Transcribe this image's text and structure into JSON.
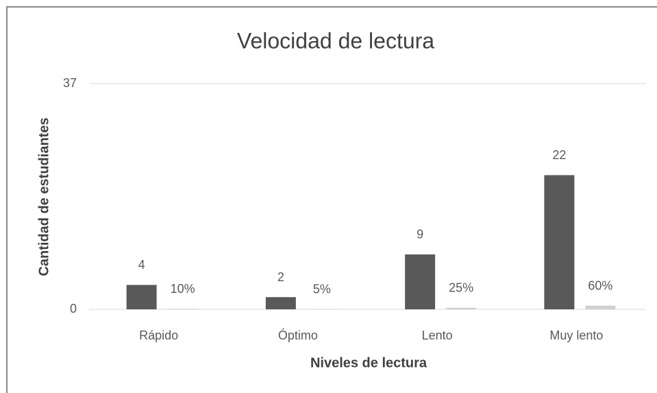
{
  "chart_data": {
    "type": "bar",
    "title": "Velocidad de lectura",
    "x_label": "Niveles de lectura",
    "y_label": "Cantidad de estudiantes",
    "categories": [
      "Rápido",
      "Óptimo",
      "Lento",
      "Muy lento"
    ],
    "series": [
      {
        "color": "#595959",
        "values": [
          4,
          2,
          9,
          22
        ]
      },
      {
        "color": "#d0d0d0",
        "values": [
          0.1,
          0.05,
          0.25,
          0.6
        ],
        "value_labels": [
          "10%",
          "5%",
          "25%",
          "60%"
        ]
      }
    ],
    "ylim": [
      0,
      37
    ],
    "yticks": [
      0,
      37
    ],
    "grid": true
  }
}
